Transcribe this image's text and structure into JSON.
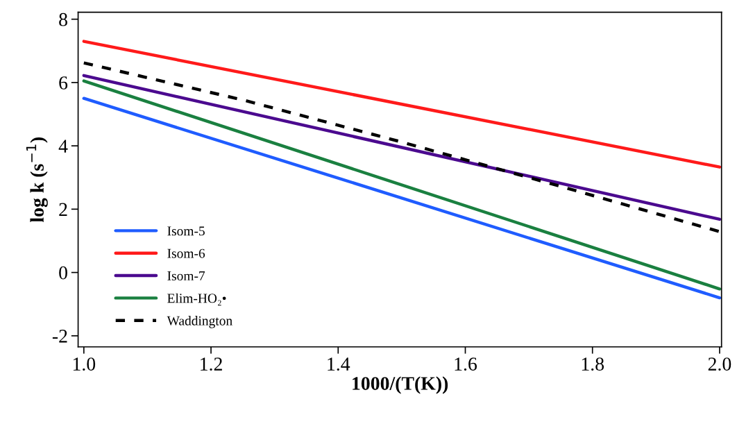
{
  "chart_data": {
    "type": "line",
    "xlabel": "1000/(T(K))",
    "ylabel": "log k (s$^{−1}$)",
    "xlim": [
      0.991,
      2.003
    ],
    "ylim": [
      -2.35,
      8.22
    ],
    "xticks": [
      {
        "value": 1.0,
        "label": "1.0"
      },
      {
        "value": 1.2,
        "label": "1.2"
      },
      {
        "value": 1.4,
        "label": "1.4"
      },
      {
        "value": 1.6,
        "label": "1.6"
      },
      {
        "value": 1.8,
        "label": "1.8"
      },
      {
        "value": 2.0,
        "label": "2.0"
      }
    ],
    "yticks": [
      {
        "value": -2,
        "label": "-2"
      },
      0,
      2,
      4,
      6,
      8
    ],
    "grid": false,
    "legend": "bottom left",
    "marker": "none",
    "x": [
      1.0,
      2.0
    ],
    "series": [
      {
        "name": "Isom-5",
        "color": "#1f5cff",
        "values": [
          5.5,
          -0.8
        ]
      },
      {
        "name": "Isom-6",
        "color": "#ff1a1a",
        "values": [
          7.3,
          3.33
        ]
      },
      {
        "name": "Isom-7",
        "color": "#4b0a8f",
        "values": [
          6.22,
          1.68
        ]
      },
      {
        "name": "Elim-HO₂•",
        "color": "#1a8040",
        "values": [
          6.05,
          -0.52
        ]
      },
      {
        "name": "Waddington",
        "color": "#000000",
        "x": [
          1.0,
          1.25,
          1.5,
          1.75,
          2.0
        ],
        "values": [
          6.62,
          5.45,
          4.12,
          2.72,
          1.29
        ],
        "line_style": "dashed"
      }
    ]
  }
}
